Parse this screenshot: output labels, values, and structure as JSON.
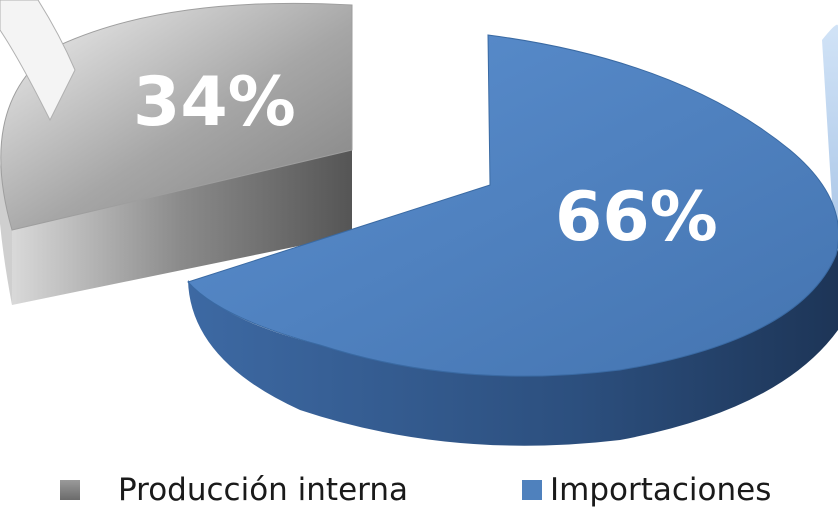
{
  "chart_data": {
    "type": "pie",
    "title": "",
    "slices": [
      {
        "name": "Producción interna",
        "value": 34,
        "label": "34%",
        "color": "#8c8c8c"
      },
      {
        "name": "Importaciones",
        "value": 66,
        "label": "66%",
        "color": "#4f81bd"
      }
    ],
    "legend_position": "bottom",
    "style": "3d-exploded"
  },
  "legend": {
    "items": [
      {
        "label": "Producción interna",
        "color": "#8c8c8c"
      },
      {
        "label": "Importaciones",
        "color": "#4f81bd"
      }
    ]
  }
}
